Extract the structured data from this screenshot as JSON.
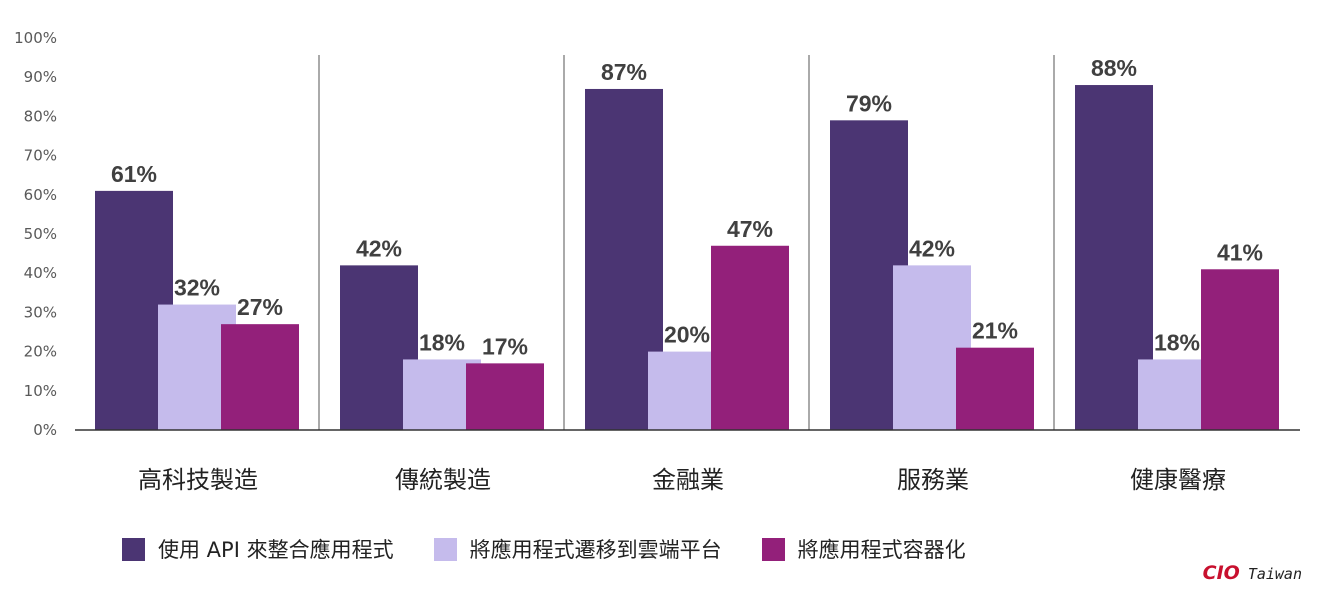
{
  "chart_data": {
    "type": "bar",
    "categories": [
      "高科技製造",
      "傳統製造",
      "金融業",
      "服務業",
      "健康醫療"
    ],
    "series": [
      {
        "name": "使用 API 來整合應用程式",
        "values": [
          61,
          42,
          87,
          79,
          88
        ],
        "labels": [
          "61%",
          "42%",
          "87%",
          "79%",
          "88%"
        ],
        "color": "#4b3573"
      },
      {
        "name": "將應用程式遷移到雲端平台",
        "values": [
          32,
          18,
          20,
          42,
          18
        ],
        "labels": [
          "32%",
          "18%",
          "20%",
          "42%",
          "18%"
        ],
        "color": "#c5bbec"
      },
      {
        "name": "將應用程式容器化",
        "values": [
          27,
          17,
          47,
          21,
          41
        ],
        "labels": [
          "27%",
          "17%",
          "47%",
          "21%",
          "41%"
        ],
        "color": "#93207a"
      }
    ],
    "ylim": [
      0,
      100
    ],
    "yticks": [
      "0%",
      "10%",
      "20%",
      "30%",
      "40%",
      "50%",
      "60%",
      "70%",
      "80%",
      "90%",
      "100%"
    ],
    "legend_position": "bottom",
    "group_separators": true,
    "grid": false
  },
  "brand": {
    "cio": "CIO",
    "taiwan": "Taiwan",
    "color": "#c8102e"
  }
}
